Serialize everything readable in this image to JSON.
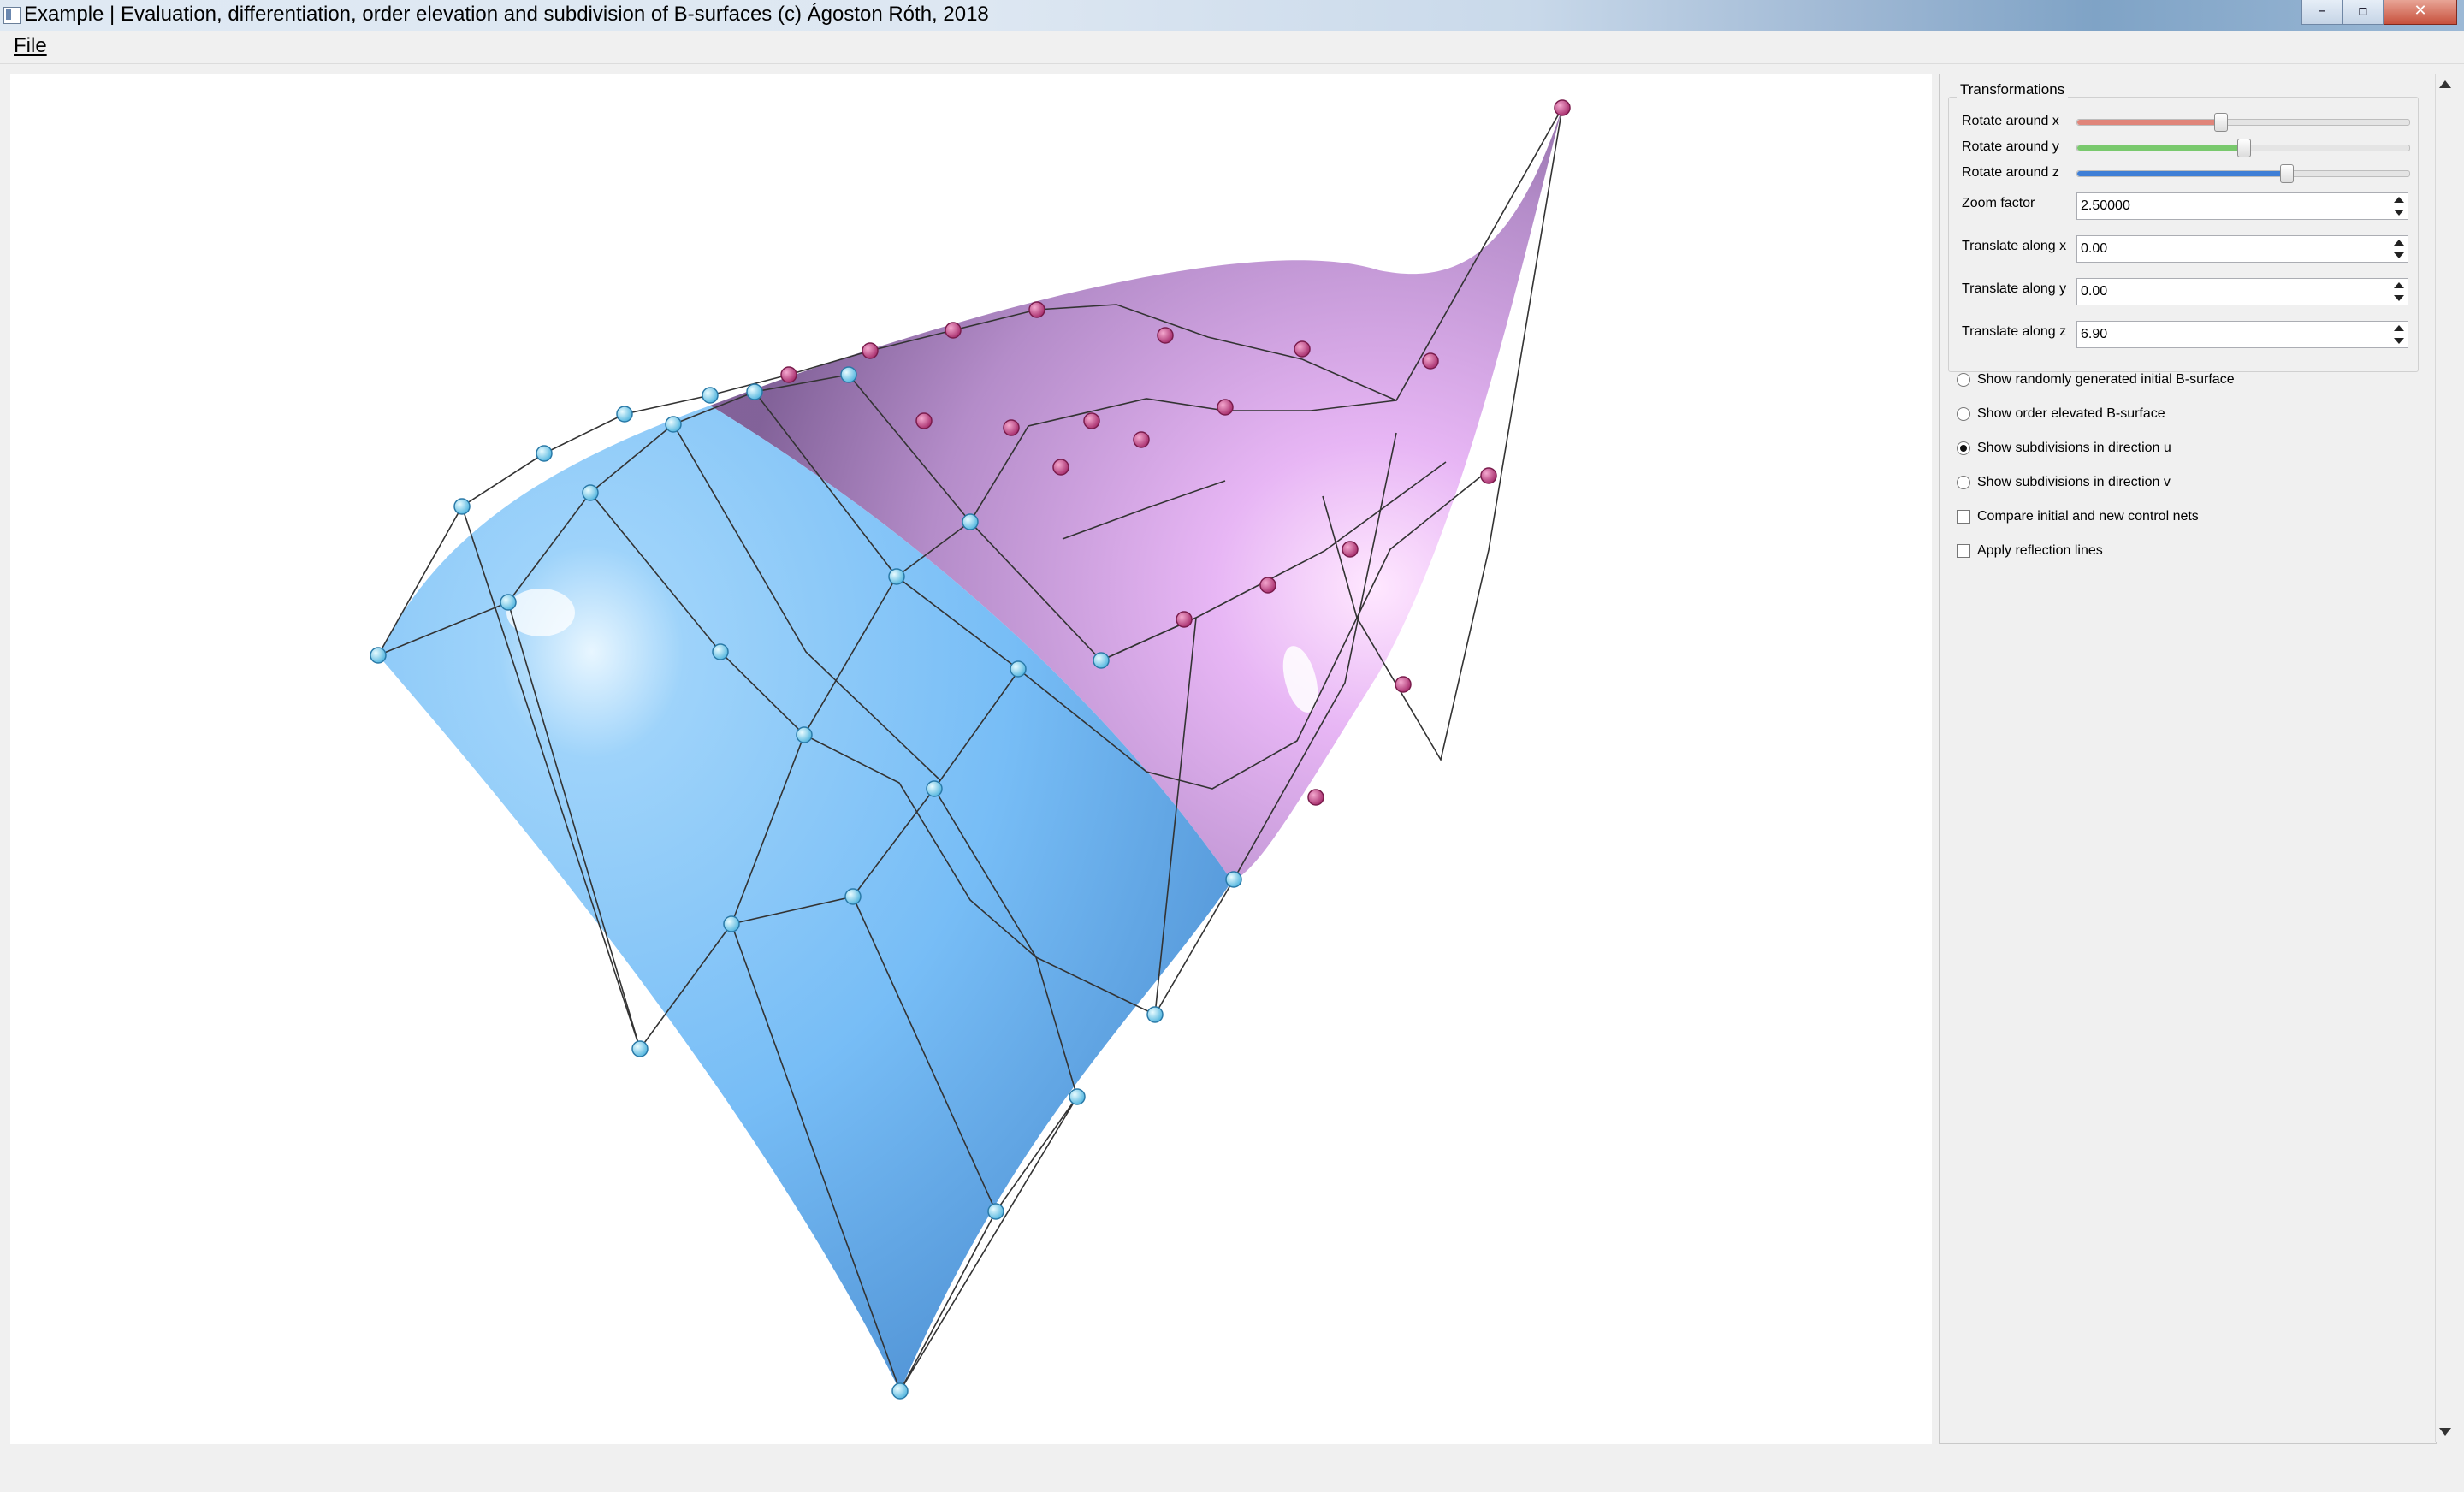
{
  "window": {
    "title": "Example | Evaluation, differentiation, order elevation and subdivision of B-surfaces (c) Ágoston Róth, 2018",
    "minimize_glyph": "–",
    "maximize_glyph": "▫",
    "close_glyph": "✕"
  },
  "menubar": {
    "file": "File"
  },
  "transformations": {
    "title": "Transformations",
    "sliders": [
      {
        "label": "Rotate around x",
        "value": 0.43,
        "color": "#e0857a"
      },
      {
        "label": "Rotate around y",
        "value": 0.5,
        "color": "#79c96d"
      },
      {
        "label": "Rotate around z",
        "value": 0.63,
        "color": "#3f7fd6"
      }
    ],
    "spinboxes": [
      {
        "label": "Zoom factor",
        "value": "2.50000"
      },
      {
        "label": "Translate along x",
        "value": "0.00"
      },
      {
        "label": "Translate along y",
        "value": "0.00"
      },
      {
        "label": "Translate along z",
        "value": "6.90"
      }
    ]
  },
  "options": {
    "radios": [
      {
        "label": "Show randomly generated initial B-surface",
        "checked": false
      },
      {
        "label": "Show order elevated B-surface",
        "checked": false
      },
      {
        "label": "Show subdivisions in direction u",
        "checked": true
      },
      {
        "label": "Show subdivisions in direction v",
        "checked": false
      }
    ],
    "checkboxes": [
      {
        "label": "Compare initial and new control nets",
        "checked": false
      },
      {
        "label": "Apply reflection lines",
        "checked": false
      }
    ]
  },
  "viewport": {
    "colors": {
      "blue_surface": "#73b9f5",
      "purple_surface": "#c9a0e2",
      "blue_points": "#5ec4ea",
      "purple_points": "#c0407e",
      "net_lines": "#333333"
    }
  }
}
